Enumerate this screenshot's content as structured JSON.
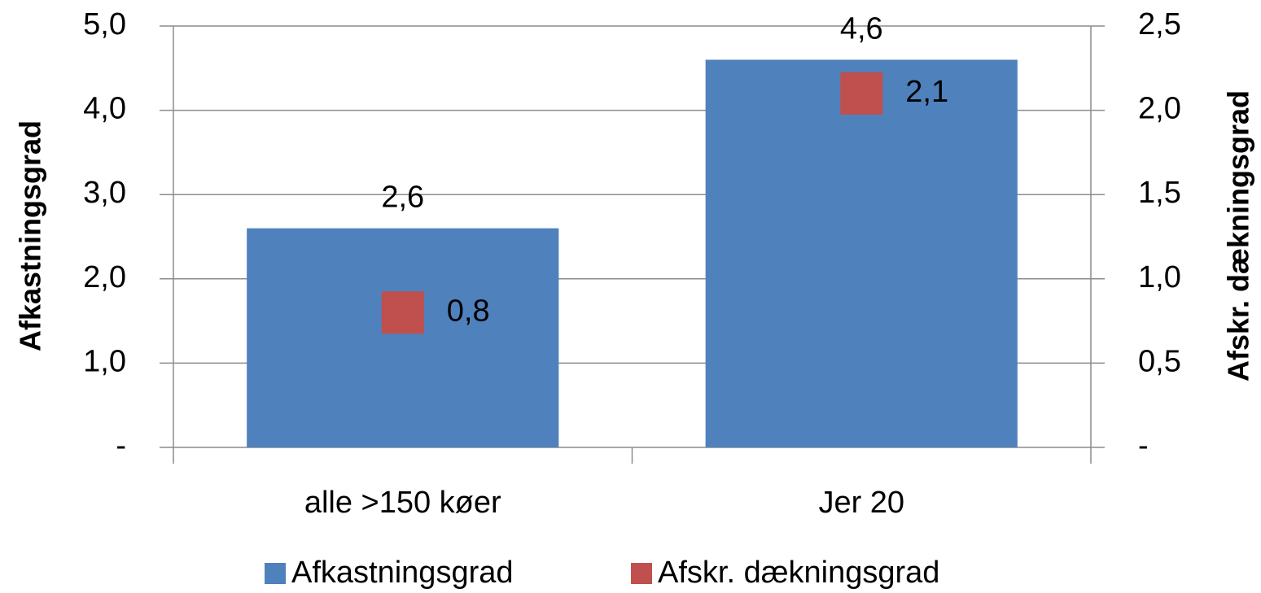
{
  "chart_data": {
    "type": "bar",
    "categories": [
      "alle >150 køer",
      "Jer 20"
    ],
    "series": [
      {
        "name": "Afkastningsgrad",
        "color": "#4f81bd",
        "values": [
          2.6,
          4.6
        ],
        "value_labels": [
          "2,6",
          "4,6"
        ]
      },
      {
        "name": "Afskr. dækningsgrad",
        "color": "#c0504d",
        "type": "scatter",
        "axis": "y2",
        "values": [
          0.8,
          2.1
        ],
        "value_labels": [
          "0,8",
          "2,1"
        ]
      }
    ],
    "y_label": "Afkastningsgrad",
    "y2_label": "Afskr. dækningsgrad",
    "ylim": [
      0,
      5
    ],
    "yticks": [
      {
        "value": 0,
        "label": "-"
      },
      {
        "value": 1,
        "label": "1,0"
      },
      {
        "value": 2,
        "label": "2,0"
      },
      {
        "value": 3,
        "label": "3,0"
      },
      {
        "value": 4,
        "label": "4,0"
      },
      {
        "value": 5,
        "label": "5,0"
      }
    ],
    "y2lim": [
      0,
      2.5
    ],
    "y2ticks": [
      {
        "value": 0,
        "label": "-"
      },
      {
        "value": 0.5,
        "label": "0,5"
      },
      {
        "value": 1,
        "label": "1,0"
      },
      {
        "value": 1.5,
        "label": "1,5"
      },
      {
        "value": 2,
        "label": "2,0"
      },
      {
        "value": 2.5,
        "label": "2,5"
      }
    ],
    "grid": true,
    "legend": "bottom"
  }
}
